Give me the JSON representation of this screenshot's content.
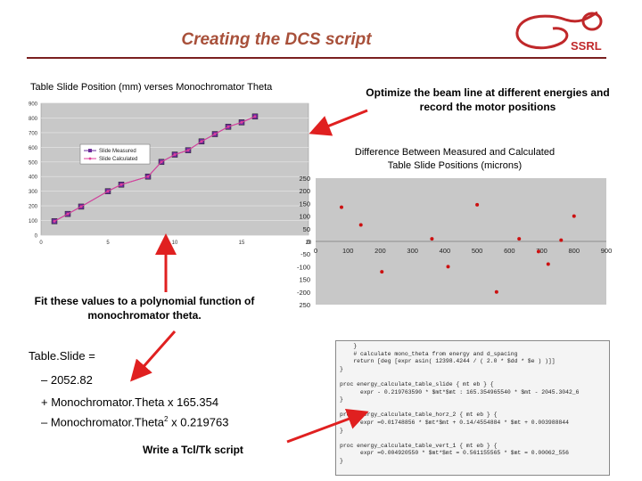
{
  "title": "Creating the DCS script",
  "logo": {
    "text": "SSRL"
  },
  "chart1": {
    "title": "Table Slide Position (mm) verses Monochromator Theta"
  },
  "chart2": {
    "callout": "Optimize the beam line at different energies and record the motor positions",
    "title_line1": "Difference Between Measured and Calculated",
    "title_line2": "Table Slide Positions (microns)"
  },
  "fit_callout": "Fit these values to a polynomial function of monochromator theta.",
  "equation": {
    "line1": "Table.Slide  =",
    "line2": "– 2052.82",
    "line3": "+ Monochromator.Theta  x 165.354",
    "line4_pre": "– Monochromator.Theta",
    "line4_sup": "2",
    "line4_post": "  x  0.219763"
  },
  "tcl_label": "Write a Tcl/Tk script",
  "code": {
    "lines": [
      "    }",
      "    # calculate mono_theta from energy and d_spacing",
      "    return [deg [expr asin( 12398.4244 / ( 2.0 * $dd * $e ) )]]",
      "}",
      "",
      "proc energy_calculate_table_slide { mt eb } {",
      "      expr - 0.219763590 * $mt*$mt : 165.354965540 * $mt - 2045.3042_6",
      "}",
      "",
      "proc energy_calculate_table_horz_2 { mt eb } {",
      "      expr =0.01748856 * $mt*$mt + 0.14/4554884 * $mt + 0.003988844",
      "}",
      "",
      "proc energy_calculate_table_vert_1 { mt eb } {",
      "      expr =0.004920550 * $mt*$mt = 0.561155565 * $mt = 0.00062_556",
      "}"
    ]
  },
  "chart_data": [
    {
      "type": "line",
      "title": "",
      "xlabel": "",
      "ylabel": "",
      "ylim": [
        0,
        900
      ],
      "xlim": [
        0,
        20
      ],
      "yticks": [
        "900",
        "800",
        "700",
        "600",
        "500",
        "400",
        "300",
        "200",
        "100",
        "0"
      ],
      "xticks": [
        "0",
        "5",
        "10",
        "15",
        "20"
      ],
      "grid": true,
      "legend": "center-left",
      "series": [
        {
          "name": "Slide Measured",
          "color": "#6a2c9a",
          "x": [
            1,
            2,
            3,
            5,
            6,
            8,
            9,
            10,
            11,
            12,
            13,
            14,
            15,
            16
          ],
          "values": [
            95,
            145,
            195,
            300,
            345,
            400,
            500,
            550,
            580,
            640,
            690,
            740,
            770,
            810
          ]
        },
        {
          "name": "Slide Calculated",
          "color": "#e0409a",
          "x": [
            1,
            2,
            3,
            5,
            6,
            8,
            9,
            10,
            11,
            12,
            13,
            14,
            15,
            16
          ],
          "values": [
            95,
            145,
            195,
            300,
            345,
            400,
            500,
            550,
            580,
            640,
            690,
            740,
            770,
            810
          ]
        }
      ]
    },
    {
      "type": "scatter",
      "title": "",
      "ylim": [
        -250,
        250
      ],
      "xlim": [
        0,
        900
      ],
      "yticks": [
        "250",
        "200",
        "150",
        "100",
        "50",
        "0",
        "-50",
        "-100",
        "150",
        "-200",
        "250"
      ],
      "xticks": [
        "0",
        "100",
        "200",
        "300",
        "400",
        "500",
        "600",
        "700",
        "800",
        "900"
      ],
      "series": [
        {
          "color": "#cc1111",
          "x": [
            80,
            140,
            205,
            360,
            410,
            500,
            560,
            630,
            690,
            720,
            760,
            800
          ],
          "values": [
            135,
            65,
            -120,
            10,
            -100,
            145,
            -200,
            10,
            -40,
            -90,
            5,
            100
          ]
        }
      ]
    }
  ]
}
